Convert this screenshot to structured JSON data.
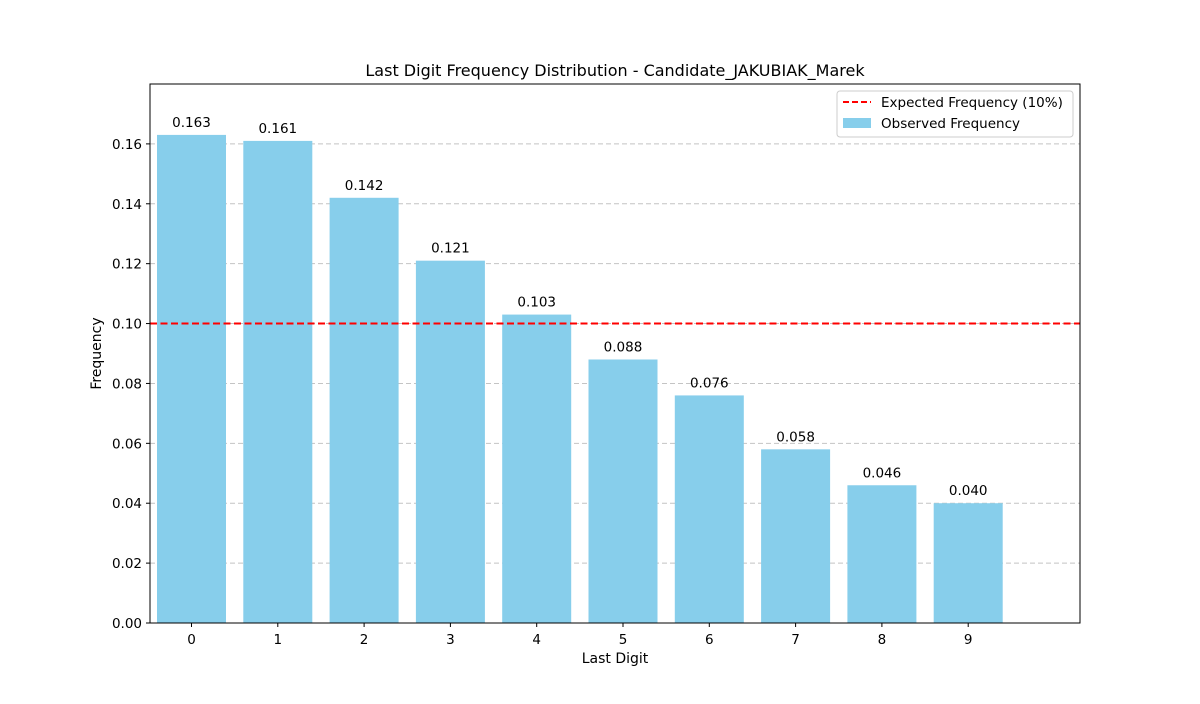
{
  "chart_data": {
    "type": "bar",
    "title": "Last Digit Frequency Distribution - Candidate_JAKUBIAK_Marek",
    "xlabel": "Last Digit",
    "ylabel": "Frequency",
    "categories": [
      "0",
      "1",
      "2",
      "3",
      "4",
      "5",
      "6",
      "7",
      "8",
      "9"
    ],
    "series": [
      {
        "name": "Observed Frequency",
        "values": [
          0.163,
          0.161,
          0.142,
          0.121,
          0.103,
          0.088,
          0.076,
          0.058,
          0.046,
          0.04
        ],
        "data_labels": [
          "0.163",
          "0.161",
          "0.142",
          "0.121",
          "0.103",
          "0.088",
          "0.076",
          "0.058",
          "0.046",
          "0.040"
        ],
        "color": "#87ceeb"
      }
    ],
    "reference_line": {
      "name": "Expected Frequency (10%)",
      "value": 0.1,
      "color": "#ff0000",
      "style": "dashed"
    },
    "ylim": [
      0,
      0.18
    ],
    "yticks": [
      0.0,
      0.02,
      0.04,
      0.06,
      0.08,
      0.1,
      0.12,
      0.14,
      0.16
    ],
    "ytick_labels": [
      "0.00",
      "0.02",
      "0.04",
      "0.06",
      "0.08",
      "0.10",
      "0.12",
      "0.14",
      "0.16"
    ],
    "grid": "y-dashed",
    "legend_position": "top-right"
  }
}
